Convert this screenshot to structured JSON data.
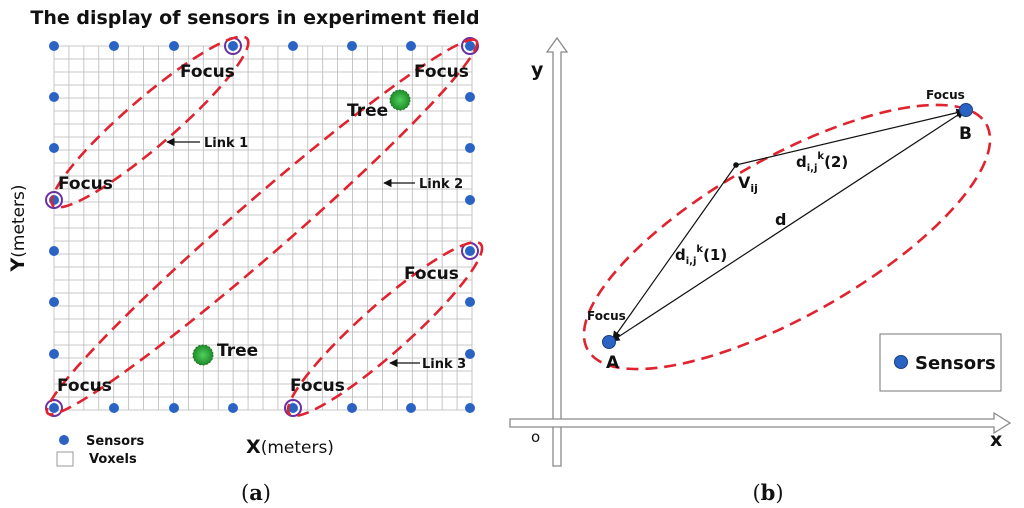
{
  "panel_a": {
    "title": "The display of sensors in experiment field",
    "focus_label": "Focus",
    "tree_label": "Tree",
    "link1": "Link 1",
    "link2": "Link 2",
    "link3": "Link 3",
    "y_axis": "Y",
    "y_axis_unit": "(meters)",
    "x_axis": "X",
    "x_axis_unit": "(meters)",
    "legend_sensors": "Sensors",
    "legend_voxels": "Voxels",
    "caption_open": "(",
    "caption_letter": "a",
    "caption_close": ")"
  },
  "panel_b": {
    "y_axis": "y",
    "x_axis": "x",
    "origin": "o",
    "focus_label": "Focus",
    "point_a": "A",
    "point_b": "B",
    "v_main": "V",
    "v_sub": "ij",
    "d": "d",
    "d1_main": "d",
    "d1_sub": "i,j",
    "d1_sup": "k",
    "d1_tail": "(1)",
    "d2_main": "d",
    "d2_sub": "i,j",
    "d2_sup": "k",
    "d2_tail": "(2)",
    "legend": "Sensors",
    "caption_open": "(",
    "caption_letter": "b",
    "caption_close": ")"
  },
  "colors": {
    "sensor": "#2b63c4",
    "ellipse": "#e0232e",
    "tree": "#2fae3f",
    "grid": "#b9b9b9"
  }
}
